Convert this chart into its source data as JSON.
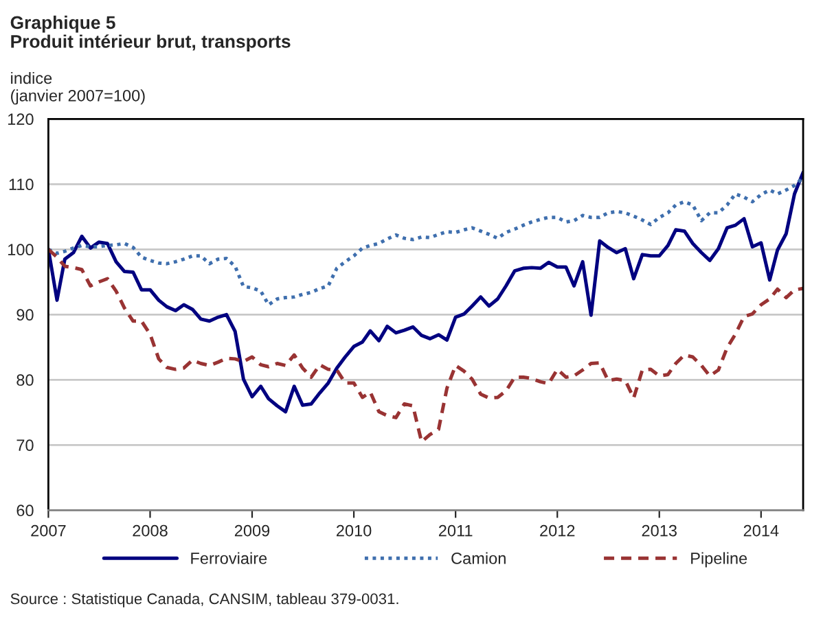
{
  "chart_data": {
    "type": "line",
    "title": "Graphique 5",
    "subtitle": "Produit intérieur brut, transports",
    "ylabel": "indice\n(janvier 2007=100)",
    "x": [
      "2007-01",
      "2007-02",
      "2007-03",
      "2007-04",
      "2007-05",
      "2007-06",
      "2007-07",
      "2007-08",
      "2007-09",
      "2007-10",
      "2007-11",
      "2007-12",
      "2008-01",
      "2008-02",
      "2008-03",
      "2008-04",
      "2008-05",
      "2008-06",
      "2008-07",
      "2008-08",
      "2008-09",
      "2008-10",
      "2008-11",
      "2008-12",
      "2009-01",
      "2009-02",
      "2009-03",
      "2009-04",
      "2009-05",
      "2009-06",
      "2009-07",
      "2009-08",
      "2009-09",
      "2009-10",
      "2009-11",
      "2009-12",
      "2010-01",
      "2010-02",
      "2010-03",
      "2010-04",
      "2010-05",
      "2010-06",
      "2010-07",
      "2010-08",
      "2010-09",
      "2010-10",
      "2010-11",
      "2010-12",
      "2011-01",
      "2011-02",
      "2011-03",
      "2011-04",
      "2011-05",
      "2011-06",
      "2011-07",
      "2011-08",
      "2011-09",
      "2011-10",
      "2011-11",
      "2011-12",
      "2012-01",
      "2012-02",
      "2012-03",
      "2012-04",
      "2012-05",
      "2012-06",
      "2012-07",
      "2012-08",
      "2012-09",
      "2012-10",
      "2012-11",
      "2012-12",
      "2013-01",
      "2013-02",
      "2013-03",
      "2013-04",
      "2013-05",
      "2013-06",
      "2013-07",
      "2013-08",
      "2013-09",
      "2013-10",
      "2013-11",
      "2013-12",
      "2014-01",
      "2014-02",
      "2014-03",
      "2014-04",
      "2014-05",
      "2014-06"
    ],
    "series": [
      {
        "name": "Ferroviaire",
        "color": "#000080",
        "line_style": "solid",
        "values": [
          100,
          92.2,
          98.5,
          99.5,
          102,
          100.2,
          101.1,
          100.9,
          98.1,
          96.6,
          96.5,
          93.8,
          93.8,
          92.2,
          91.2,
          90.6,
          91.5,
          90.8,
          89.3,
          89,
          89.6,
          90,
          87.4,
          80.1,
          77.4,
          79,
          77.1,
          76,
          75.1,
          79,
          76.1,
          76.3,
          78,
          79.5,
          81.8,
          83.5,
          85.1,
          85.8,
          87.5,
          86,
          88.2,
          87.2,
          87.6,
          88.1,
          86.8,
          86.3,
          86.9,
          86.1,
          89.6,
          90.1,
          91.3,
          92.7,
          91.3,
          92.4,
          94.4,
          96.7,
          97.1,
          97.2,
          97.1,
          98,
          97.3,
          97.3,
          94.4,
          98.1,
          89.9,
          101.3,
          100.3,
          99.5,
          100.1,
          95.5,
          99.2,
          99,
          99,
          100.6,
          103,
          102.8,
          100.9,
          99.5,
          98.3,
          100.1,
          103.3,
          103.7,
          104.7,
          100.4,
          101,
          95.3,
          99.9,
          102.4,
          108.5,
          111.8
        ]
      },
      {
        "name": "Camion",
        "color": "#3f6fae",
        "line_style": "dotted",
        "values": [
          100,
          99.4,
          99.7,
          100.2,
          100.6,
          100.4,
          100.4,
          100.6,
          100.7,
          100.9,
          100.3,
          98.8,
          98.3,
          97.9,
          97.8,
          98.1,
          98.5,
          99,
          99,
          97.8,
          98.5,
          98.6,
          97.4,
          94.3,
          94.1,
          93.6,
          91.5,
          92.4,
          92.6,
          92.7,
          93.1,
          93.4,
          94,
          94.4,
          97.1,
          98.1,
          99,
          100.2,
          100.6,
          100.9,
          101.6,
          102.2,
          101.7,
          101.5,
          101.9,
          101.8,
          102.3,
          102.7,
          102.6,
          103,
          103.3,
          102.8,
          102.3,
          101.7,
          102.6,
          103.1,
          103.7,
          104.2,
          104.6,
          104.9,
          104.9,
          104.2,
          104.4,
          105.2,
          104.9,
          104.9,
          105.6,
          105.8,
          105.6,
          105.1,
          104.5,
          103.8,
          104.9,
          105.6,
          106.8,
          107.3,
          106.8,
          104.4,
          105.6,
          105.6,
          106.8,
          108.5,
          108,
          107.3,
          108.4,
          109.1,
          108.5,
          109.1,
          109.8,
          111
        ]
      },
      {
        "name": "Pipeline",
        "color": "#993333",
        "line_style": "dashed",
        "values": [
          100,
          98.8,
          97.4,
          97.2,
          96.9,
          94.4,
          95,
          95.5,
          93.6,
          91,
          89,
          89,
          87,
          83.2,
          81.9,
          81.6,
          81.8,
          83,
          82.5,
          82.2,
          82.7,
          83.3,
          83.2,
          82.8,
          83.5,
          82.3,
          82,
          82.5,
          82.2,
          83.8,
          81.8,
          80.4,
          82.3,
          81.6,
          81.5,
          79.5,
          79.5,
          77.3,
          78.1,
          75.1,
          74.5,
          74.2,
          76.3,
          76,
          70.5,
          71.6,
          72.4,
          78.7,
          82.2,
          81.3,
          80.1,
          77.8,
          77.2,
          77.3,
          78.3,
          80.4,
          80.4,
          80.2,
          79.7,
          79.4,
          81.6,
          80.4,
          80.6,
          81.5,
          82.5,
          82.6,
          79.9,
          80.1,
          79.9,
          77.2,
          81.5,
          81.6,
          80.6,
          80.8,
          82.5,
          83.8,
          83.5,
          82.2,
          80.6,
          81.5,
          84.9,
          87,
          89.7,
          90.1,
          91.5,
          92.4,
          93.9,
          92.6,
          93.8,
          94
        ]
      }
    ],
    "xlim": [
      "2007-01",
      "2014-06"
    ],
    "xticks": [
      {
        "value": "2007-01",
        "label": "2007"
      },
      {
        "value": "2008-01",
        "label": "2008"
      },
      {
        "value": "2009-01",
        "label": "2009"
      },
      {
        "value": "2010-01",
        "label": "2010"
      },
      {
        "value": "2011-01",
        "label": "2011"
      },
      {
        "value": "2012-01",
        "label": "2012"
      },
      {
        "value": "2013-01",
        "label": "2013"
      },
      {
        "value": "2014-01",
        "label": "2014"
      }
    ],
    "ylim": [
      60,
      120
    ],
    "yticks": [
      60,
      70,
      80,
      90,
      100,
      110,
      120
    ],
    "grid": "y",
    "legend": "bottom",
    "annotations": [
      "Source : Statistique Canada, CANSIM, tableau 379-0031."
    ]
  }
}
